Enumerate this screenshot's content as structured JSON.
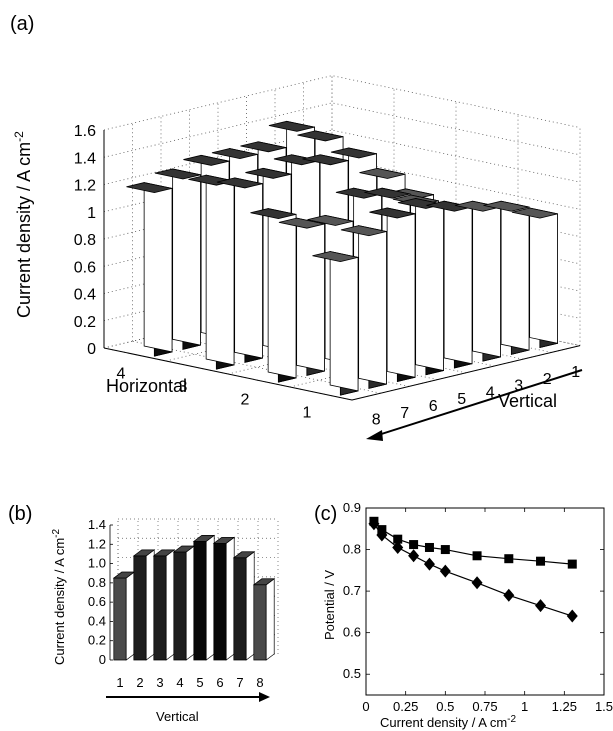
{
  "panels": {
    "a": "(a)",
    "b": "(b)",
    "c": "(c)"
  },
  "chart_data": [
    {
      "type": "bar3d",
      "panel": "(a)",
      "zlabel": "Current density / A cm",
      "zlabel_sup": "-2",
      "zticks": [
        "0",
        "0.2",
        "0.4",
        "0.6",
        "0.8",
        "1",
        "1.2",
        "1.4",
        "1.6"
      ],
      "zlim": [
        0,
        1.6
      ],
      "horizontal_label": "Horizontal",
      "horizontal_ticks": [
        "4",
        "3",
        "2",
        "1"
      ],
      "vertical_label": "Vertical",
      "vertical_ticks": [
        "8",
        "7",
        "6",
        "5",
        "4",
        "3",
        "2",
        "1"
      ],
      "grid": true,
      "rows": [
        {
          "horizontal": 1,
          "vertical": [
            0.95,
            1.05,
            1.1,
            1.15,
            1.22,
            1.2,
            1.12,
            0.98
          ]
        },
        {
          "horizontal": 2,
          "vertical": [
            0.76,
            0.75,
            1.05,
            1.15,
            1.2,
            1.05,
            1.08,
            1.2
          ]
        },
        {
          "horizontal": 3,
          "vertical": [
            0.9,
            1.1,
            1.3,
            1.3,
            1.35,
            1.3,
            1.28,
            1.35
          ]
        },
        {
          "horizontal": 4,
          "vertical": [
            0.38,
            1.28,
            1.4,
            1.3,
            1.3,
            1.3,
            1.25,
            1.2
          ]
        }
      ]
    },
    {
      "type": "bar",
      "panel": "(b)",
      "ylabel": "Current density / A cm",
      "ylabel_sup": "-2",
      "yticks": [
        "0",
        "0.2",
        "0.4",
        "0.6",
        "0.8",
        "1.0",
        "1.2",
        "1.4"
      ],
      "ylim": [
        0,
        1.4
      ],
      "xlabel": "Vertical",
      "categories": [
        "1",
        "2",
        "3",
        "4",
        "5",
        "6",
        "7",
        "8"
      ],
      "values": [
        0.85,
        1.08,
        1.08,
        1.12,
        1.23,
        1.21,
        1.06,
        0.78
      ],
      "colors": [
        "#4a4a4a",
        "#1e1e1e",
        "#1e1e1e",
        "#1e1e1e",
        "#080808",
        "#080808",
        "#1e1e1e",
        "#4a4a4a"
      ],
      "grid": true
    },
    {
      "type": "line",
      "panel": "(c)",
      "xlabel": "Current density / A cm",
      "xlabel_sup": "-2",
      "ylabel": "Potential / V",
      "xticks": [
        "0",
        "0.25",
        "0.5",
        "0.75",
        "1",
        "1.25",
        "1.5"
      ],
      "yticks": [
        "0.5",
        "0.6",
        "0.7",
        "0.8",
        "0.9"
      ],
      "xlim": [
        0,
        1.5
      ],
      "ylim": [
        0.45,
        0.9
      ],
      "series": [
        {
          "marker": "square",
          "x": [
            0.05,
            0.1,
            0.2,
            0.3,
            0.4,
            0.5,
            0.7,
            0.9,
            1.1,
            1.3
          ],
          "y": [
            0.868,
            0.848,
            0.825,
            0.812,
            0.805,
            0.8,
            0.785,
            0.778,
            0.772,
            0.765
          ]
        },
        {
          "marker": "diamond",
          "x": [
            0.05,
            0.1,
            0.2,
            0.3,
            0.4,
            0.5,
            0.7,
            0.9,
            1.1,
            1.3
          ],
          "y": [
            0.862,
            0.835,
            0.805,
            0.785,
            0.765,
            0.748,
            0.72,
            0.69,
            0.665,
            0.64
          ]
        }
      ]
    }
  ]
}
